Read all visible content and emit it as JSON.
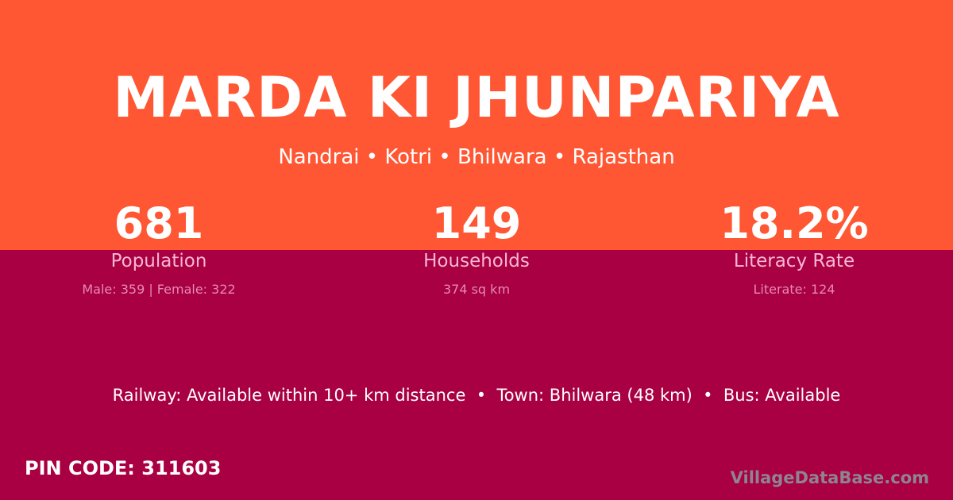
{
  "colors": {
    "top": "#FF5733",
    "bottom": "#A80042"
  },
  "title": "MARDA KI JHUNPARIYA",
  "location": "Nandrai • Kotri • Bhilwara • Rajasthan",
  "stats": [
    {
      "value": "681",
      "label": "Population",
      "detail": "Male: 359 | Female: 322"
    },
    {
      "value": "149",
      "label": "Households",
      "detail": "374 sq km"
    },
    {
      "value": "18.2%",
      "label": "Literacy Rate",
      "detail": "Literate: 124"
    }
  ],
  "info": "Railway: Available within 10+ km distance  •  Town: Bhilwara (48 km)  •  Bus: Available",
  "pin": "PIN CODE: 311603",
  "brand": "VillageDataBase.com"
}
